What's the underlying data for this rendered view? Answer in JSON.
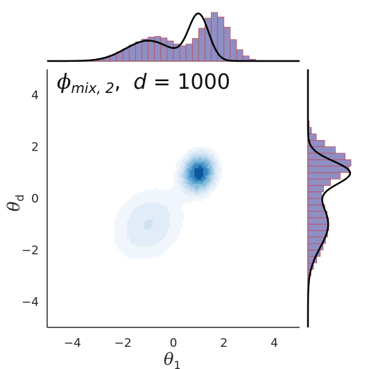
{
  "chart_data": {
    "type": "joint-kde",
    "annotation": {
      "symbol": "ϕ",
      "subscript": "mix, 2",
      "separator": ",",
      "variable": "d",
      "equals": " = 1000"
    },
    "xlabel": {
      "base": "θ",
      "sub": "1"
    },
    "ylabel": {
      "base": "θ",
      "sub": "d"
    },
    "xlim": [
      -5,
      5
    ],
    "ylim": [
      -5,
      5
    ],
    "xticks": [
      -4,
      -2,
      0,
      2,
      4
    ],
    "yticks": [
      -4,
      -2,
      0,
      2,
      4
    ],
    "tick_labels_x": [
      "−4",
      "−2",
      "0",
      "2",
      "4"
    ],
    "tick_labels_y": [
      "−4",
      "−2",
      "0",
      "2",
      "4"
    ],
    "kde_components": [
      {
        "weight": 0.5,
        "mean": [
          1.0,
          1.0
        ],
        "sx": 0.4,
        "sy": 0.45,
        "rho": 0.1
      },
      {
        "weight": 0.5,
        "mean": [
          -1.0,
          -1.0
        ],
        "sx": 0.9,
        "sy": 0.9,
        "rho": 0.2
      }
    ],
    "kde_levels": [
      0.07,
      0.14,
      0.22,
      0.3,
      0.38,
      0.48,
      0.6,
      0.74,
      0.88
    ],
    "kde_colors": [
      "#f0f6fc",
      "#e1ecf8",
      "#d0e2f2",
      "#bed7ec",
      "#a7cce4",
      "#85bcdc",
      "#5ca3d0",
      "#3686c0",
      "#0d57a0"
    ],
    "marginal_x": {
      "bins": 40,
      "range": [
        -5,
        5
      ],
      "density": [
        0.0,
        0.0,
        0.0,
        0.0,
        0.0,
        0.0,
        0.002,
        0.006,
        0.015,
        0.031,
        0.052,
        0.08,
        0.11,
        0.14,
        0.17,
        0.195,
        0.212,
        0.218,
        0.204,
        0.178,
        0.15,
        0.135,
        0.15,
        0.2,
        0.29,
        0.38,
        0.43,
        0.39,
        0.3,
        0.19,
        0.1,
        0.045,
        0.016,
        0.005,
        0.001,
        0.0,
        0.0,
        0.0,
        0.0,
        0.0
      ]
    },
    "marginal_y": {
      "bins": 40,
      "range": [
        -5,
        5
      ],
      "density": [
        0.0,
        0.0,
        0.0,
        0.0,
        0.0,
        0.001,
        0.004,
        0.012,
        0.03,
        0.056,
        0.09,
        0.125,
        0.155,
        0.18,
        0.2,
        0.212,
        0.21,
        0.196,
        0.172,
        0.148,
        0.138,
        0.16,
        0.23,
        0.33,
        0.42,
        0.44,
        0.38,
        0.28,
        0.17,
        0.085,
        0.035,
        0.012,
        0.003,
        0.0,
        0.0,
        0.0,
        0.0,
        0.0,
        0.0,
        0.0
      ]
    },
    "colors": {
      "hist_fill": "#8f8fc4",
      "hist_edge": "#c04a55",
      "kde_line": "#000000",
      "axis_line": "#262626"
    },
    "grid": false
  }
}
